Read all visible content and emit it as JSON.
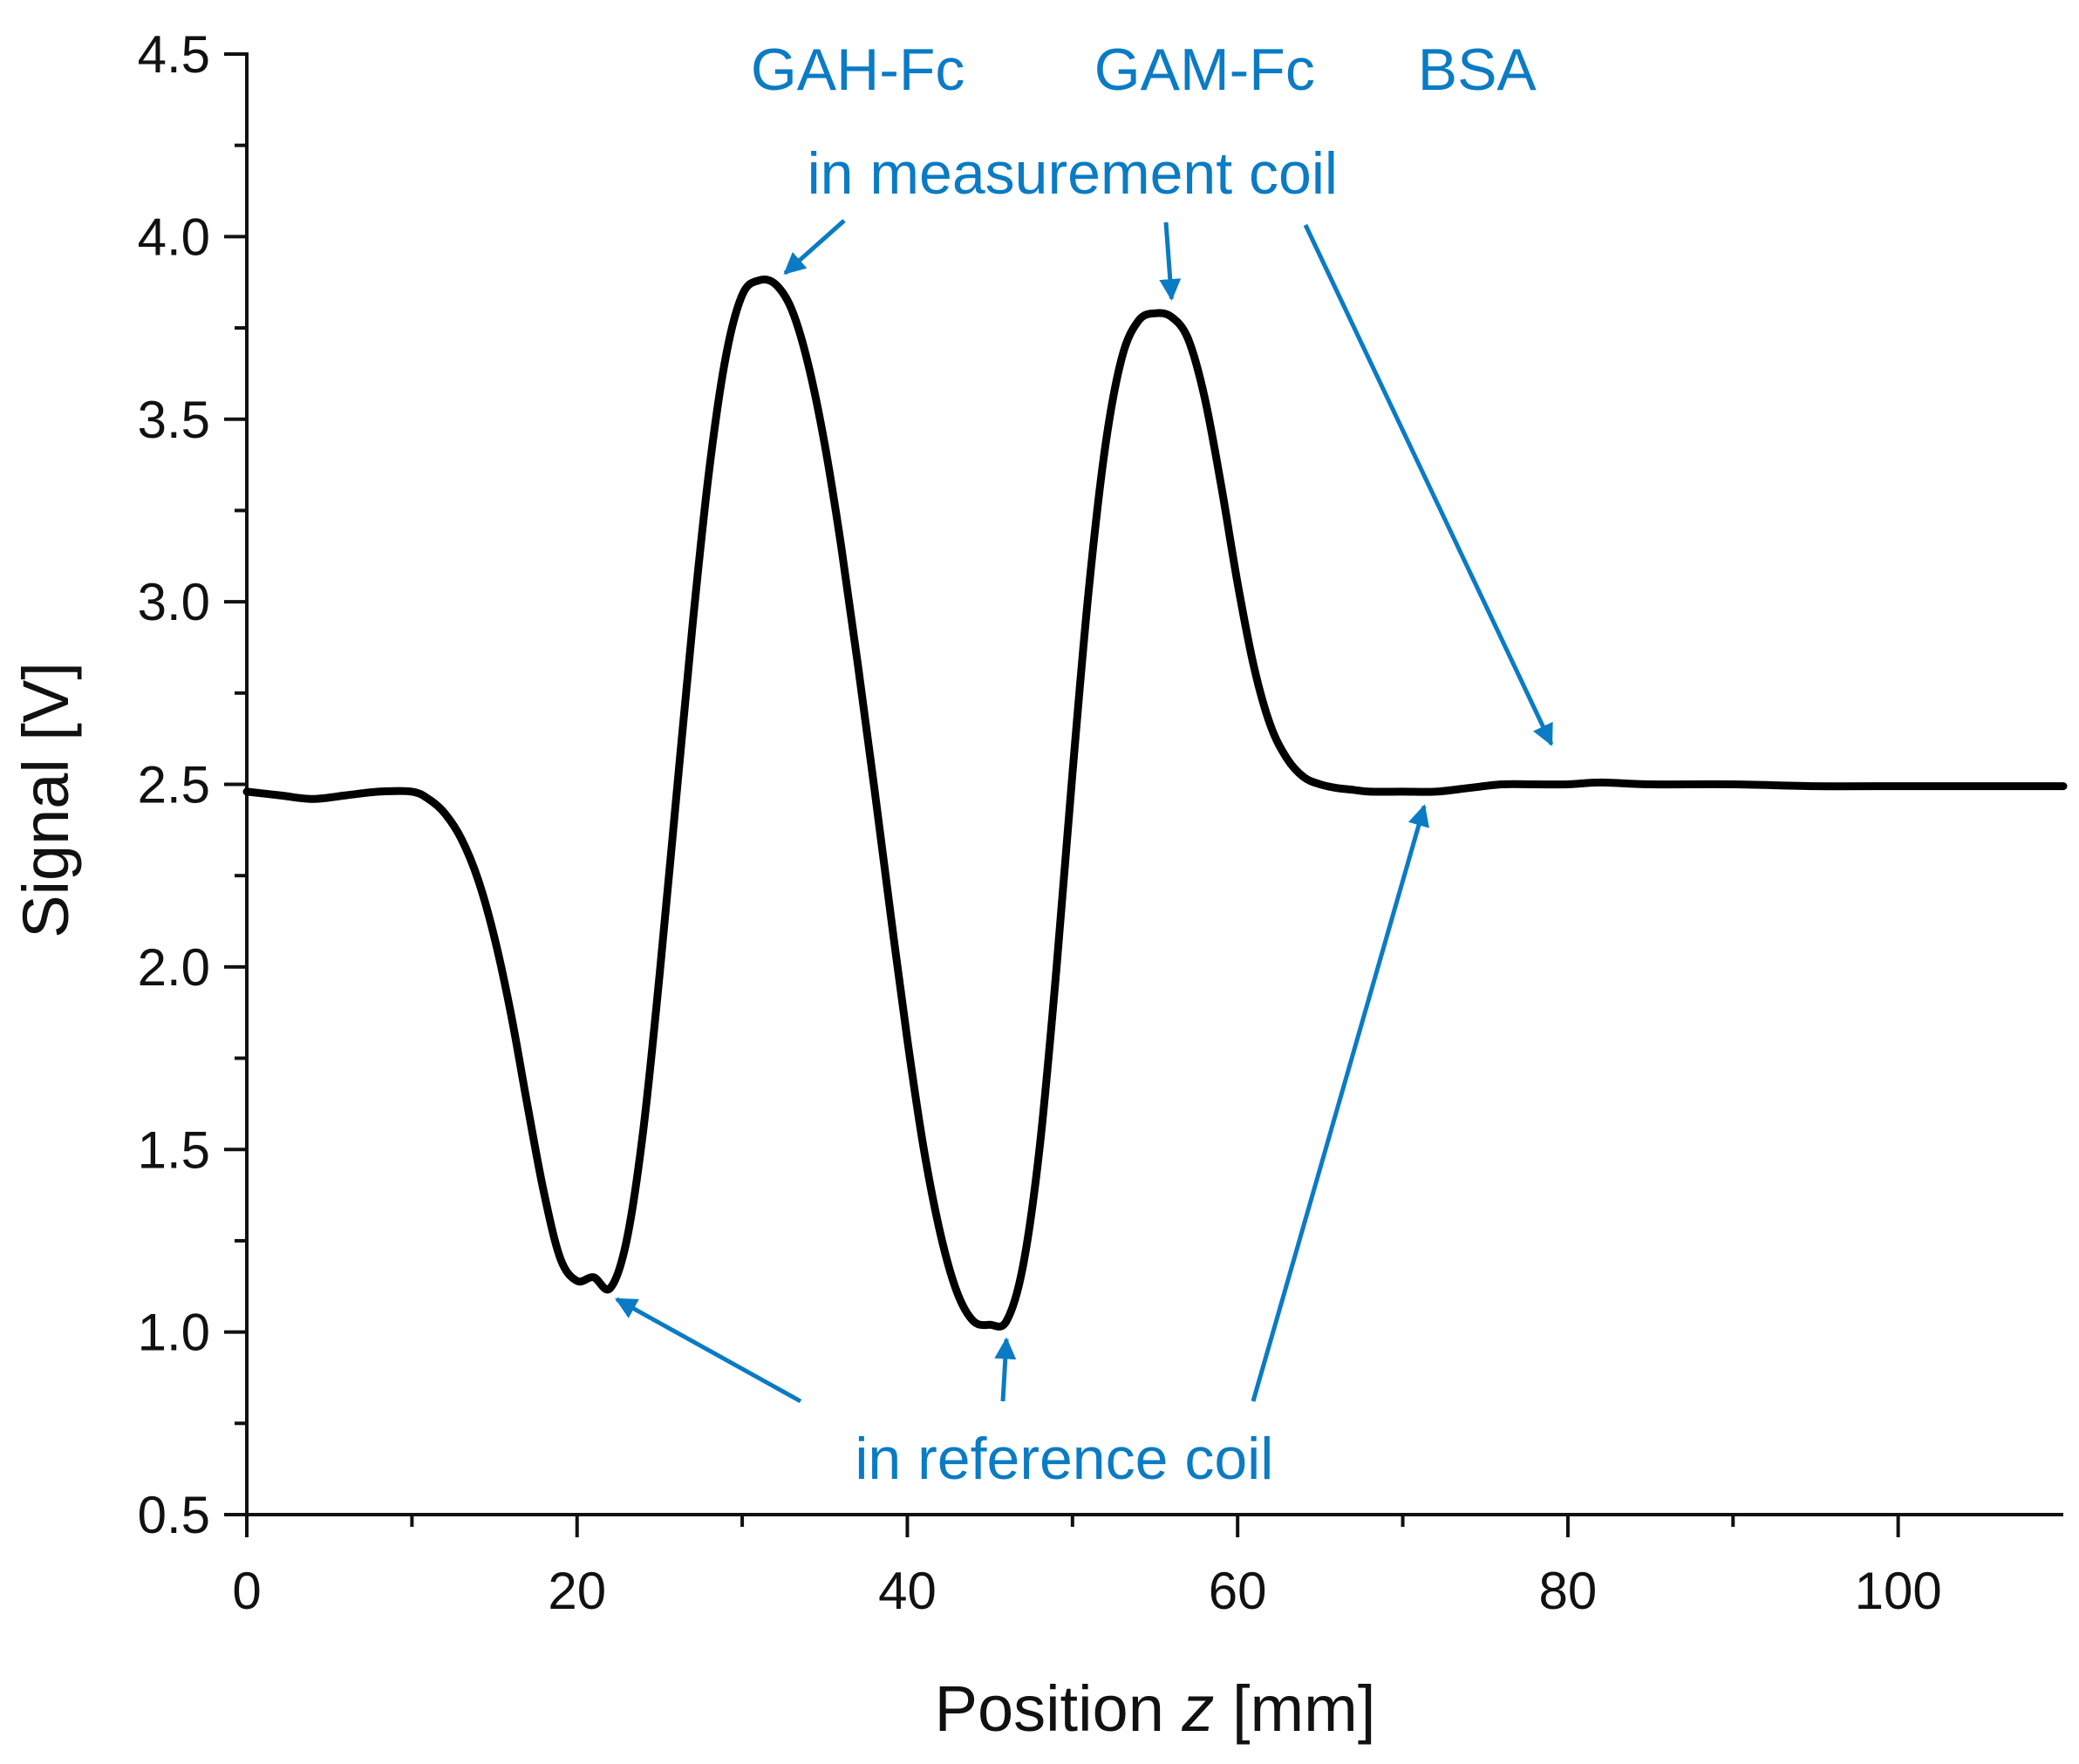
{
  "chart_data": {
    "type": "line",
    "title": "",
    "xlabel": {
      "prefix": "Position ",
      "var": "z",
      "suffix": " [mm]"
    },
    "ylabel": "Signal [V]",
    "xlim": [
      0,
      110
    ],
    "ylim": [
      0.5,
      4.5
    ],
    "xticks": [
      0,
      20,
      40,
      60,
      80,
      100
    ],
    "xtick_labels": [
      "0",
      "20",
      "40",
      "60",
      "80",
      "100"
    ],
    "yticks": [
      0.5,
      1.0,
      1.5,
      2.0,
      2.5,
      3.0,
      3.5,
      4.0,
      4.5
    ],
    "ytick_labels": [
      "0.5",
      "1.0",
      "1.5",
      "2.0",
      "2.5",
      "3.0",
      "3.5",
      "4.0",
      "4.5"
    ],
    "x_minor_step": 10,
    "y_minor_step": 0.25,
    "grid": false,
    "series": [
      {
        "name": "Signal",
        "color": "#000000",
        "x": [
          0,
          2,
          4,
          6,
          8,
          10,
          11,
          12,
          13,
          14,
          15,
          16,
          17,
          18,
          19,
          20,
          21,
          22,
          23,
          24,
          25,
          26,
          27,
          28,
          29,
          30,
          31,
          32,
          33,
          34,
          35,
          36,
          37,
          38,
          39,
          40,
          41,
          42,
          43,
          44,
          45,
          46,
          47,
          48,
          49,
          50,
          51,
          52,
          53,
          54,
          55,
          56,
          57,
          58,
          59,
          60,
          61,
          62,
          63,
          64,
          65,
          66,
          67,
          68,
          70,
          72,
          74,
          76,
          78,
          80,
          82,
          85,
          90,
          95,
          100,
          105,
          110
        ],
        "y": [
          2.48,
          2.47,
          2.46,
          2.47,
          2.48,
          2.48,
          2.46,
          2.42,
          2.35,
          2.24,
          2.08,
          1.87,
          1.62,
          1.38,
          1.2,
          1.14,
          1.15,
          1.12,
          1.25,
          1.55,
          1.98,
          2.46,
          2.94,
          3.36,
          3.67,
          3.84,
          3.88,
          3.87,
          3.8,
          3.65,
          3.43,
          3.15,
          2.83,
          2.49,
          2.14,
          1.8,
          1.5,
          1.27,
          1.11,
          1.03,
          1.02,
          1.03,
          1.18,
          1.5,
          1.98,
          2.53,
          3.04,
          3.43,
          3.67,
          3.77,
          3.79,
          3.78,
          3.72,
          3.56,
          3.32,
          3.05,
          2.82,
          2.66,
          2.57,
          2.52,
          2.5,
          2.49,
          2.485,
          2.48,
          2.48,
          2.48,
          2.49,
          2.5,
          2.5,
          2.5,
          2.505,
          2.5,
          2.5,
          2.495,
          2.495,
          2.495,
          2.495
        ]
      }
    ],
    "annotations": {
      "color": "#0a7bc4",
      "sample_labels": [
        {
          "text": "GAH-Fc",
          "x": 37
        },
        {
          "text": "GAM-Fc",
          "x": 58
        },
        {
          "text": "BSA",
          "x": 74.5
        }
      ],
      "measurement_label": {
        "text": "in measurement coil",
        "x": 50
      },
      "reference_label": {
        "text": "in reference coil",
        "x": 49.5
      },
      "arrows_to": [
        {
          "group": "measurement",
          "x": 32.6,
          "y": 3.9
        },
        {
          "group": "measurement",
          "x": 56,
          "y": 3.83
        },
        {
          "group": "measurement",
          "x": 79,
          "y": 2.61
        },
        {
          "group": "reference",
          "x": 22.4,
          "y": 1.09
        },
        {
          "group": "reference",
          "x": 46,
          "y": 0.98
        },
        {
          "group": "reference",
          "x": 71.3,
          "y": 2.44
        }
      ]
    }
  }
}
